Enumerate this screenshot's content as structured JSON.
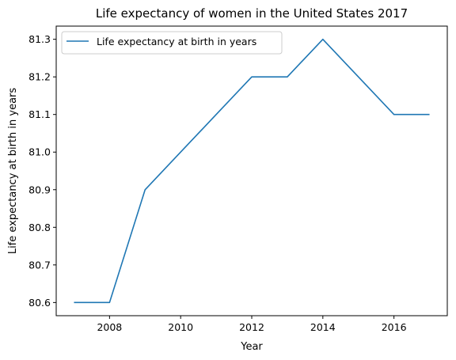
{
  "chart_data": {
    "type": "line",
    "title": "Life expectancy of women in the United States 2017",
    "xlabel": "Year",
    "ylabel": "Life expectancy at birth in years",
    "xlim": [
      2006.5,
      2017.5
    ],
    "ylim": [
      80.565,
      81.335
    ],
    "xticks": [
      2008,
      2010,
      2012,
      2014,
      2016
    ],
    "yticks": [
      80.6,
      80.7,
      80.8,
      80.9,
      81.0,
      81.1,
      81.2,
      81.3
    ],
    "grid": false,
    "legend_position": "top-left",
    "series": [
      {
        "name": "Life expectancy at birth in years",
        "color": "#1f77b4",
        "x": [
          2007,
          2008,
          2009,
          2010,
          2011,
          2012,
          2013,
          2014,
          2015,
          2016,
          2017
        ],
        "y": [
          80.6,
          80.6,
          80.9,
          81.0,
          81.1,
          81.2,
          81.2,
          81.3,
          81.2,
          81.1,
          81.1
        ]
      }
    ]
  }
}
